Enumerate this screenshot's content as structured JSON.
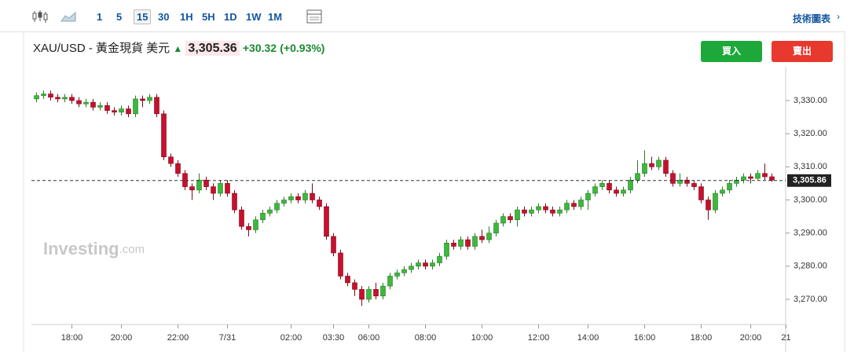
{
  "toolbar": {
    "intervals": [
      "1",
      "5",
      "15",
      "30",
      "1H",
      "5H",
      "1D",
      "1W",
      "1M"
    ],
    "active_interval": "15",
    "right_link": "技術圖表"
  },
  "header": {
    "symbol": "XAU/USD - 黃金現貨 美元",
    "price": "3,305.36",
    "change": "+30.32",
    "change_pct": "(+0.93%)"
  },
  "buttons": {
    "buy": "買入",
    "sell": "賣出"
  },
  "watermark": {
    "brand": "Investing",
    "suffix": ".com"
  },
  "chart_data": {
    "type": "candlestick",
    "up_color": "#3cb93c",
    "down_color": "#c8102e",
    "open": [
      3330.5,
      3331.5,
      3332,
      3331,
      3330.5,
      3331,
      3330,
      3329,
      3329.5,
      3328,
      3328.5,
      3327,
      3326.5,
      3327.5,
      3326,
      3330.5,
      3330,
      3331,
      3326,
      3313,
      3311,
      3308,
      3304,
      3303,
      3306,
      3304,
      3302,
      3305,
      3302,
      3297,
      3292,
      3291,
      3294,
      3296,
      3297,
      3299,
      3300,
      3301,
      3300,
      3302,
      3300,
      3298,
      3289,
      3284,
      3277,
      3275,
      3273,
      3270,
      3273,
      3271,
      3274,
      3277,
      3278,
      3279,
      3280,
      3281,
      3280,
      3281,
      3283,
      3287,
      3286,
      3288,
      3286,
      3289,
      3288,
      3290,
      3293,
      3295,
      3294,
      3297,
      3296,
      3297,
      3298,
      3297,
      3296,
      3297,
      3299,
      3298,
      3300,
      3302,
      3304,
      3305,
      3303,
      3302,
      3303,
      3306,
      3308,
      3311,
      3310,
      3312,
      3308,
      3305,
      3306,
      3305,
      3304,
      3300,
      3297,
      3302,
      3303,
      3305,
      3306,
      3307,
      3306.5,
      3308,
      3307
    ],
    "high": [
      3332.5,
      3333,
      3333,
      3332,
      3332,
      3332,
      3331,
      3330.5,
      3330.5,
      3329.5,
      3329.5,
      3328,
      3328.5,
      3328.5,
      3331.5,
      3331.5,
      3332,
      3332,
      3327,
      3314,
      3312,
      3309,
      3305,
      3308,
      3307,
      3305,
      3306,
      3306,
      3303,
      3298,
      3293,
      3295,
      3297,
      3298,
      3300,
      3301,
      3302,
      3302,
      3303,
      3305,
      3301,
      3299,
      3290,
      3285,
      3278,
      3276,
      3274,
      3274,
      3275,
      3275,
      3278,
      3279,
      3280,
      3281,
      3282,
      3282,
      3282,
      3284,
      3288,
      3288,
      3289,
      3289,
      3290,
      3291,
      3292,
      3294,
      3296,
      3296,
      3298,
      3298,
      3298,
      3299,
      3299,
      3298,
      3298,
      3300,
      3300,
      3301,
      3303,
      3305,
      3306,
      3306,
      3304,
      3304,
      3307,
      3312,
      3315,
      3313,
      3313,
      3313,
      3309,
      3308,
      3307,
      3306,
      3305,
      3301,
      3303,
      3304,
      3306,
      3307,
      3308,
      3308,
      3309,
      3311,
      3308
    ],
    "low": [
      3329.5,
      3330.5,
      3330,
      3329.5,
      3329.5,
      3329,
      3328,
      3328,
      3327,
      3327,
      3326,
      3325.5,
      3325.5,
      3325,
      3325,
      3328,
      3329,
      3325,
      3312,
      3310,
      3307,
      3303,
      3300,
      3302,
      3303,
      3300,
      3301,
      3301,
      3296,
      3291,
      3289,
      3290,
      3293,
      3295,
      3296,
      3298,
      3299,
      3299,
      3299,
      3299,
      3297,
      3288,
      3283,
      3276,
      3274,
      3271,
      3268,
      3269,
      3270,
      3270,
      3273,
      3276,
      3277,
      3278,
      3279,
      3279,
      3279,
      3280,
      3282,
      3285,
      3285,
      3285,
      3285,
      3287,
      3287,
      3289,
      3292,
      3293,
      3292,
      3295,
      3295,
      3296,
      3296,
      3295,
      3295,
      3296,
      3297,
      3297,
      3297,
      3301,
      3303,
      3302,
      3301,
      3301,
      3302,
      3305,
      3307,
      3309,
      3309,
      3307,
      3304,
      3304,
      3304,
      3303,
      3299,
      3294,
      3296,
      3301,
      3302,
      3304,
      3305,
      3305,
      3306,
      3306,
      3305.5
    ],
    "close": [
      3331.5,
      3332,
      3331,
      3330.5,
      3331,
      3330,
      3329,
      3329.5,
      3328,
      3328.5,
      3327,
      3326.5,
      3327.5,
      3326,
      3330.5,
      3330,
      3331,
      3326,
      3313,
      3311,
      3308,
      3304,
      3303,
      3306,
      3304,
      3302,
      3305,
      3302,
      3297,
      3292,
      3291,
      3294,
      3296,
      3297,
      3299,
      3300,
      3301,
      3300,
      3302,
      3300,
      3298,
      3289,
      3284,
      3277,
      3275,
      3273,
      3270,
      3273,
      3271,
      3274,
      3277,
      3278,
      3279,
      3280,
      3281,
      3280,
      3281,
      3283,
      3287,
      3286,
      3288,
      3286,
      3289,
      3288,
      3290,
      3293,
      3295,
      3294,
      3297,
      3296,
      3297,
      3298,
      3297,
      3296,
      3297,
      3299,
      3298,
      3300,
      3302,
      3304,
      3305,
      3303,
      3302,
      3303,
      3306,
      3308,
      3311,
      3310,
      3312,
      3308,
      3305,
      3306,
      3305,
      3304,
      3300,
      3297,
      3302,
      3303,
      3305,
      3306,
      3307,
      3306.5,
      3308,
      3307,
      3306
    ],
    "ylim": [
      3262.4,
      3340.2
    ],
    "yticks": [
      {
        "value": 3270,
        "label": "3,270.00"
      },
      {
        "value": 3280,
        "label": "3,280.00"
      },
      {
        "value": 3290,
        "label": "3,290.00"
      },
      {
        "value": 3300,
        "label": "3,300.00"
      },
      {
        "value": 3310,
        "label": "3,310.00"
      },
      {
        "value": 3320,
        "label": "3,320.00"
      },
      {
        "value": 3330,
        "label": "3,330.00"
      }
    ],
    "xticks": [
      {
        "value": 5,
        "label": "18:00"
      },
      {
        "value": 12,
        "label": "20:00"
      },
      {
        "value": 20,
        "label": "22:00"
      },
      {
        "value": 27,
        "label": "7/31"
      },
      {
        "value": 36,
        "label": "02:00"
      },
      {
        "value": 42,
        "label": "03:30"
      },
      {
        "value": 47,
        "label": "06:00"
      },
      {
        "value": 55,
        "label": "08:00"
      },
      {
        "value": 63,
        "label": "10:00"
      },
      {
        "value": 71,
        "label": "12:00"
      },
      {
        "value": 78,
        "label": "14:00"
      },
      {
        "value": 86,
        "label": "16:00"
      },
      {
        "value": 94,
        "label": "18:00"
      },
      {
        "value": 101,
        "label": "20:00"
      },
      {
        "value": 106,
        "label": "21"
      }
    ],
    "last_price": {
      "value": 3305.86,
      "label": "3,305.86"
    }
  }
}
